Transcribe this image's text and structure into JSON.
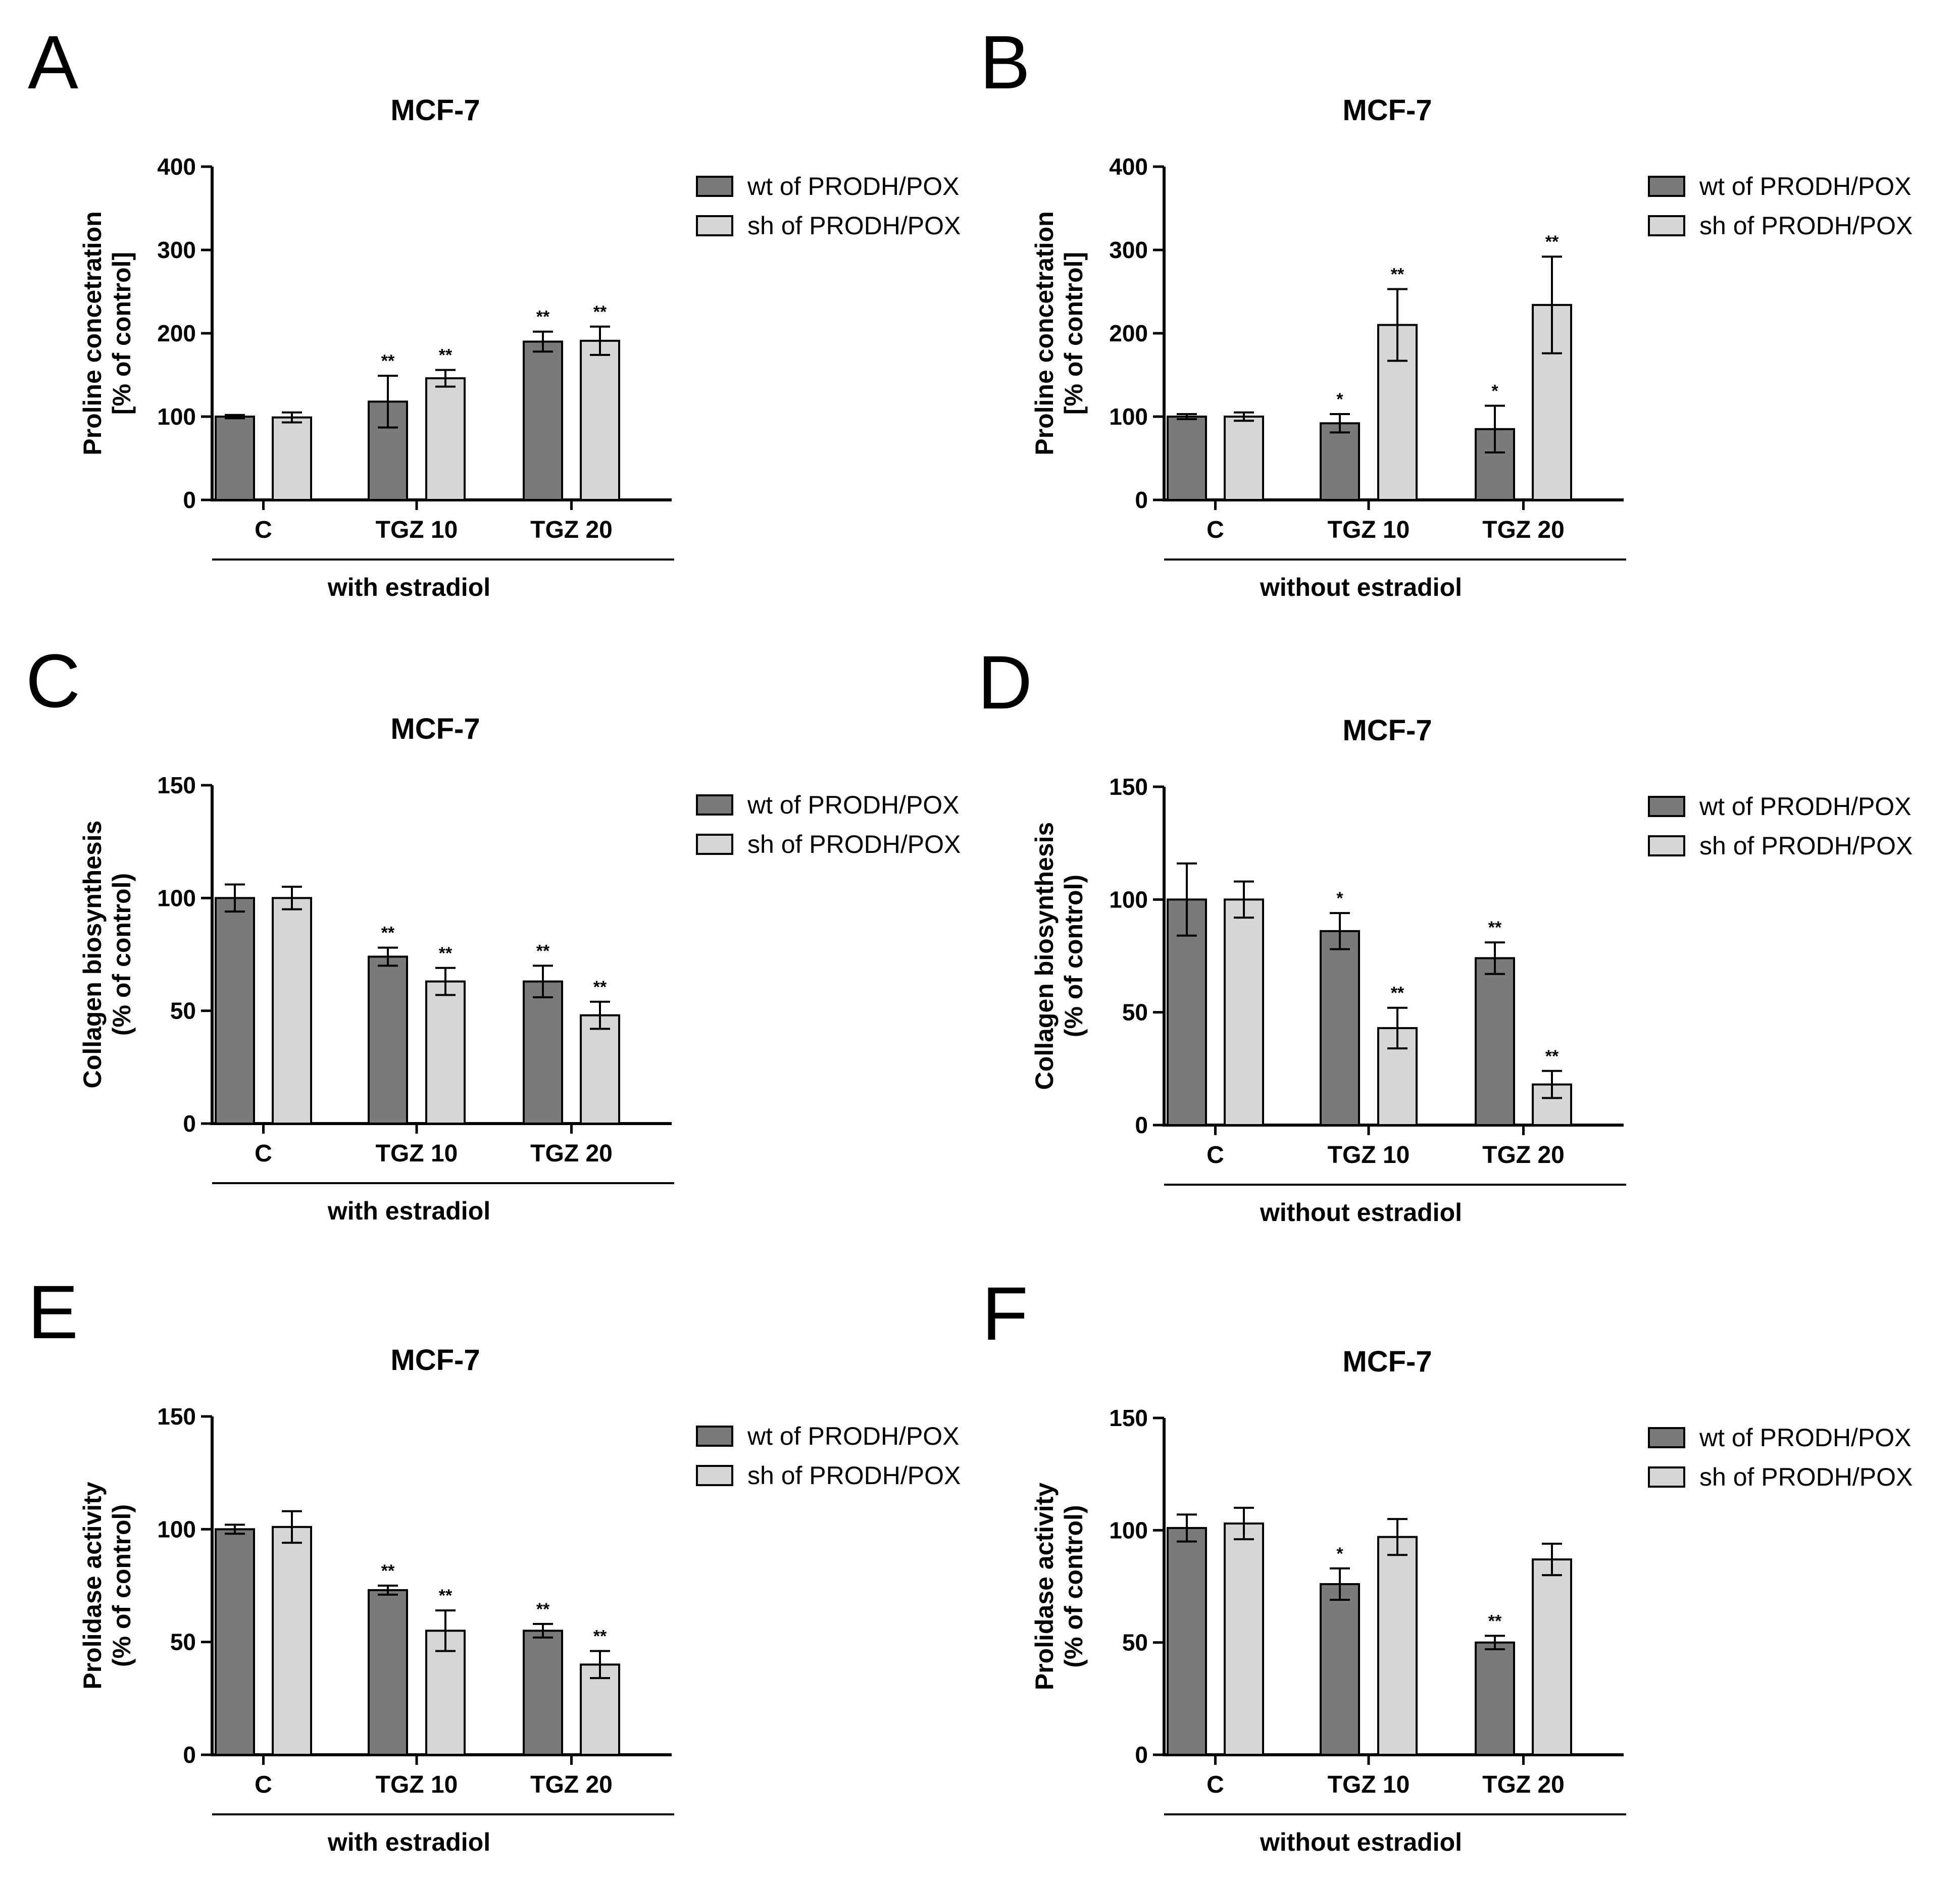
{
  "colors": {
    "wt": "#7a7a7a",
    "sh": "#d6d6d6",
    "axis": "#000000"
  },
  "chart_data": [
    {
      "letter": "A",
      "type": "bar",
      "title": "MCF-7",
      "ylabel": [
        "Proline concetration",
        "[% of control]"
      ],
      "ylim": [
        0,
        400
      ],
      "yticks": [
        0,
        100,
        200,
        300,
        400
      ],
      "categories": [
        "C",
        "TGZ 10",
        "TGZ 20"
      ],
      "group_label": "with estradiol",
      "series": [
        {
          "name": "wt of PRODH/POX",
          "values": [
            100,
            118,
            190
          ],
          "errors": [
            2,
            31,
            12
          ],
          "sig": [
            "",
            "**",
            "**"
          ]
        },
        {
          "name": "sh of PRODH/POX",
          "values": [
            99,
            146,
            191
          ],
          "errors": [
            6,
            10,
            17
          ],
          "sig": [
            "",
            "**",
            "**"
          ]
        }
      ]
    },
    {
      "letter": "B",
      "type": "bar",
      "title": "MCF-7",
      "ylabel": [
        "Proline concetration",
        "[% of control]"
      ],
      "ylim": [
        0,
        400
      ],
      "yticks": [
        0,
        100,
        200,
        300,
        400
      ],
      "categories": [
        "C",
        "TGZ 10",
        "TGZ 20"
      ],
      "group_label": "without estradiol",
      "series": [
        {
          "name": "wt of PRODH/POX",
          "values": [
            100,
            92,
            85
          ],
          "errors": [
            3,
            11,
            28
          ],
          "sig": [
            "",
            "*",
            "*"
          ]
        },
        {
          "name": "sh of PRODH/POX",
          "values": [
            100,
            210,
            234
          ],
          "errors": [
            5,
            43,
            58
          ],
          "sig": [
            "",
            "**",
            "**"
          ]
        }
      ]
    },
    {
      "letter": "C",
      "type": "bar",
      "title": "MCF-7",
      "ylabel": [
        "Collagen biosynthesis",
        "(% of control)"
      ],
      "ylim": [
        0,
        150
      ],
      "yticks": [
        0,
        50,
        100,
        150
      ],
      "categories": [
        "C",
        "TGZ 10",
        "TGZ 20"
      ],
      "group_label": "with estradiol",
      "series": [
        {
          "name": "wt of PRODH/POX",
          "values": [
            100,
            74,
            63
          ],
          "errors": [
            6,
            4,
            7
          ],
          "sig": [
            "",
            "**",
            "**"
          ]
        },
        {
          "name": "sh of PRODH/POX",
          "values": [
            100,
            63,
            48
          ],
          "errors": [
            5,
            6,
            6
          ],
          "sig": [
            "",
            "**",
            "**"
          ]
        }
      ]
    },
    {
      "letter": "D",
      "type": "bar",
      "title": "MCF-7",
      "ylabel": [
        "Collagen biosynthesis",
        "(% of control)"
      ],
      "ylim": [
        0,
        150
      ],
      "yticks": [
        0,
        50,
        100,
        150
      ],
      "categories": [
        "C",
        "TGZ 10",
        "TGZ 20"
      ],
      "group_label": "without estradiol",
      "series": [
        {
          "name": "wt of PRODH/POX",
          "values": [
            100,
            86,
            74
          ],
          "errors": [
            16,
            8,
            7
          ],
          "sig": [
            "",
            "*",
            "**"
          ]
        },
        {
          "name": "sh of PRODH/POX",
          "values": [
            100,
            43,
            18
          ],
          "errors": [
            8,
            9,
            6
          ],
          "sig": [
            "",
            "**",
            "**"
          ]
        }
      ]
    },
    {
      "letter": "E",
      "type": "bar",
      "title": "MCF-7",
      "ylabel": [
        "Prolidase activity",
        "(% of control)"
      ],
      "ylim": [
        0,
        150
      ],
      "yticks": [
        0,
        50,
        100,
        150
      ],
      "categories": [
        "C",
        "TGZ 10",
        "TGZ 20"
      ],
      "group_label": "with estradiol",
      "series": [
        {
          "name": "wt of PRODH/POX",
          "values": [
            100,
            73,
            55
          ],
          "errors": [
            2,
            2,
            3
          ],
          "sig": [
            "",
            "**",
            "**"
          ]
        },
        {
          "name": "sh of PRODH/POX",
          "values": [
            101,
            55,
            40
          ],
          "errors": [
            7,
            9,
            6
          ],
          "sig": [
            "",
            "**",
            "**"
          ]
        }
      ]
    },
    {
      "letter": "F",
      "type": "bar",
      "title": "MCF-7",
      "ylabel": [
        "Prolidase activity",
        "(% of control)"
      ],
      "ylim": [
        0,
        150
      ],
      "yticks": [
        0,
        50,
        100,
        150
      ],
      "categories": [
        "C",
        "TGZ 10",
        "TGZ 20"
      ],
      "group_label": "without estradiol",
      "series": [
        {
          "name": "wt of PRODH/POX",
          "values": [
            101,
            76,
            50
          ],
          "errors": [
            6,
            7,
            3
          ],
          "sig": [
            "",
            "*",
            "**"
          ]
        },
        {
          "name": "sh of PRODH/POX",
          "values": [
            103,
            97,
            87
          ],
          "errors": [
            7,
            8,
            7
          ],
          "sig": [
            "",
            "",
            ""
          ]
        }
      ]
    }
  ]
}
